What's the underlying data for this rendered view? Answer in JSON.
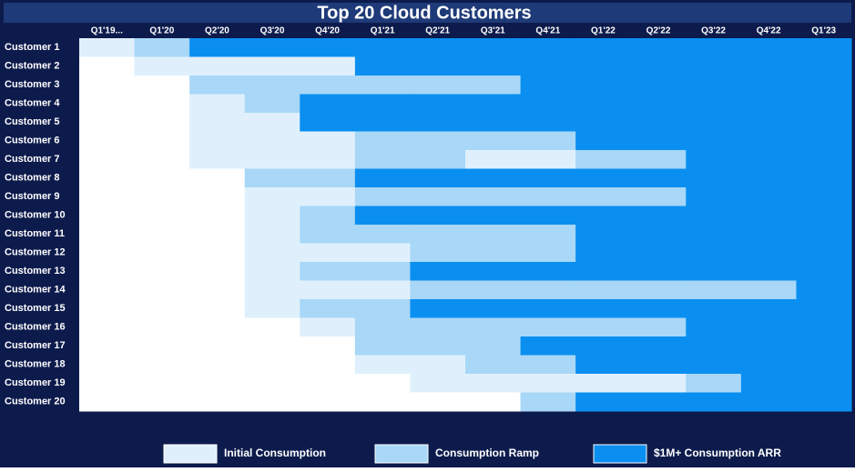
{
  "chart_data": {
    "type": "heatmap",
    "title": "Top 20 Cloud Customers",
    "x": [
      "Q1'19...",
      "Q1'20",
      "Q2'20",
      "Q3'20",
      "Q4'20",
      "Q1'21",
      "Q2'21",
      "Q3'21",
      "Q4'21",
      "Q1'22",
      "Q2'22",
      "Q3'22",
      "Q4'22",
      "Q1'23"
    ],
    "y": [
      "Customer 1",
      "Customer 2",
      "Customer 3",
      "Customer 4",
      "Customer 5",
      "Customer 6",
      "Customer 7",
      "Customer 8",
      "Customer 9",
      "Customer 10",
      "Customer 11",
      "Customer 12",
      "Customer 13",
      "Customer 14",
      "Customer 15",
      "Customer 16",
      "Customer 17",
      "Customer 18",
      "Customer 19",
      "Customer 20"
    ],
    "empty_color": "#ffffff",
    "series": [
      {
        "name": "Initial Consumption",
        "color": "#dff0fc"
      },
      {
        "name": "Consumption Ramp",
        "color": "#a8d7f8"
      },
      {
        "name": "$1M+ Consumption ARR",
        "color": "#0a8ff0"
      }
    ],
    "values": [
      [
        1,
        2,
        3,
        3,
        3,
        3,
        3,
        3,
        3,
        3,
        3,
        3,
        3,
        3
      ],
      [
        0,
        1,
        1,
        1,
        1,
        3,
        3,
        3,
        3,
        3,
        3,
        3,
        3,
        3
      ],
      [
        0,
        0,
        2,
        2,
        2,
        2,
        2,
        2,
        3,
        3,
        3,
        3,
        3,
        3
      ],
      [
        0,
        0,
        1,
        2,
        3,
        3,
        3,
        3,
        3,
        3,
        3,
        3,
        3,
        3
      ],
      [
        0,
        0,
        1,
        1,
        3,
        3,
        3,
        3,
        3,
        3,
        3,
        3,
        3,
        3
      ],
      [
        0,
        0,
        1,
        1,
        1,
        2,
        2,
        2,
        2,
        3,
        3,
        3,
        3,
        3
      ],
      [
        0,
        0,
        1,
        1,
        1,
        2,
        2,
        1,
        1,
        2,
        2,
        3,
        3,
        3
      ],
      [
        0,
        0,
        0,
        2,
        2,
        3,
        3,
        3,
        3,
        3,
        3,
        3,
        3,
        3
      ],
      [
        0,
        0,
        0,
        1,
        1,
        2,
        2,
        2,
        2,
        2,
        2,
        3,
        3,
        3
      ],
      [
        0,
        0,
        0,
        1,
        2,
        3,
        3,
        3,
        3,
        3,
        3,
        3,
        3,
        3
      ],
      [
        0,
        0,
        0,
        1,
        2,
        2,
        2,
        2,
        2,
        3,
        3,
        3,
        3,
        3
      ],
      [
        0,
        0,
        0,
        1,
        1,
        1,
        2,
        2,
        2,
        3,
        3,
        3,
        3,
        3
      ],
      [
        0,
        0,
        0,
        1,
        2,
        2,
        3,
        3,
        3,
        3,
        3,
        3,
        3,
        3
      ],
      [
        0,
        0,
        0,
        1,
        1,
        1,
        2,
        2,
        2,
        2,
        2,
        2,
        2,
        3
      ],
      [
        0,
        0,
        0,
        1,
        2,
        2,
        3,
        3,
        3,
        3,
        3,
        3,
        3,
        3
      ],
      [
        0,
        0,
        0,
        0,
        1,
        2,
        2,
        2,
        2,
        2,
        2,
        3,
        3,
        3
      ],
      [
        0,
        0,
        0,
        0,
        0,
        2,
        2,
        2,
        3,
        3,
        3,
        3,
        3,
        3
      ],
      [
        0,
        0,
        0,
        0,
        0,
        1,
        1,
        2,
        2,
        3,
        3,
        3,
        3,
        3
      ],
      [
        0,
        0,
        0,
        0,
        0,
        0,
        1,
        1,
        1,
        1,
        1,
        2,
        3,
        3
      ],
      [
        0,
        0,
        0,
        0,
        0,
        0,
        0,
        0,
        2,
        3,
        3,
        3,
        3,
        3
      ]
    ]
  }
}
